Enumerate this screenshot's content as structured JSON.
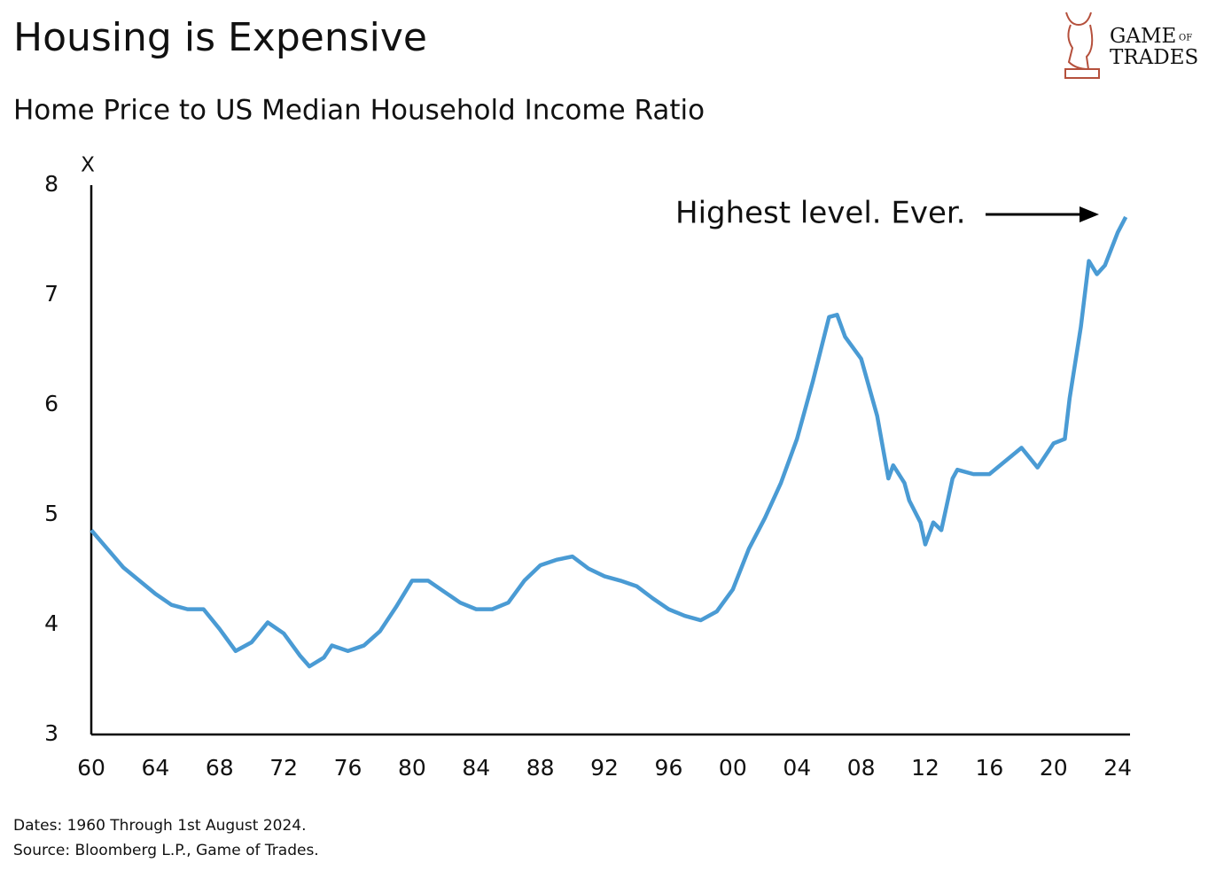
{
  "chart_data": {
    "type": "line",
    "title": "Housing is Expensive",
    "subtitle": "Home Price to US Median Household Income Ratio",
    "y_axis_label": "X",
    "annotation": "Highest level. Ever.",
    "notes": [
      "Dates: 1960 Through 1st August 2024.",
      "Source: Bloomberg L.P., Game of Trades."
    ],
    "logo": {
      "line1": "GAME",
      "small": "OF",
      "line2": "TRADES"
    },
    "x": [
      1960,
      1961,
      1962,
      1963,
      1964,
      1965,
      1966,
      1967,
      1968,
      1969,
      1970,
      1971,
      1972,
      1973,
      1973.6,
      1974.5,
      1975,
      1976,
      1977,
      1978,
      1979,
      1980,
      1981,
      1982,
      1983,
      1984,
      1985,
      1986,
      1987,
      1988,
      1989,
      1990,
      1991,
      1992,
      1993,
      1994,
      1995,
      1996,
      1997,
      1998,
      1999,
      2000,
      2001,
      2002,
      2003,
      2004,
      2005,
      2006,
      2006.5,
      2007,
      2008,
      2009,
      2009.7,
      2010,
      2010.7,
      2011,
      2011.7,
      2012,
      2012.5,
      2013,
      2013.7,
      2014,
      2015,
      2016,
      2017,
      2018,
      2019,
      2020,
      2020.7,
      2021,
      2021.7,
      2022.2,
      2022.7,
      2023.2,
      2024,
      2024.5
    ],
    "series": [
      {
        "name": "Home Price to US Median Household Income Ratio",
        "color": "#4a9bd4",
        "values": [
          4.86,
          4.69,
          4.52,
          4.4,
          4.28,
          4.18,
          4.14,
          4.14,
          3.96,
          3.76,
          3.84,
          4.02,
          3.92,
          3.72,
          3.62,
          3.7,
          3.81,
          3.76,
          3.81,
          3.94,
          4.16,
          4.4,
          4.4,
          4.3,
          4.2,
          4.14,
          4.14,
          4.2,
          4.4,
          4.54,
          4.59,
          4.62,
          4.51,
          4.44,
          4.4,
          4.35,
          4.24,
          4.14,
          4.08,
          4.04,
          4.12,
          4.32,
          4.69,
          4.97,
          5.29,
          5.69,
          6.22,
          6.8,
          6.82,
          6.62,
          6.42,
          5.9,
          5.33,
          5.45,
          5.29,
          5.13,
          4.93,
          4.73,
          4.93,
          4.86,
          5.33,
          5.41,
          5.37,
          5.37,
          5.49,
          5.61,
          5.43,
          5.65,
          5.69,
          6.06,
          6.71,
          7.31,
          7.19,
          7.27,
          7.57,
          7.71
        ]
      }
    ],
    "xlim": [
      1960,
      2024.6
    ],
    "ylim": [
      3,
      8
    ],
    "xticks": [
      {
        "value": 1960,
        "label": "60"
      },
      {
        "value": 1964,
        "label": "64"
      },
      {
        "value": 1968,
        "label": "68"
      },
      {
        "value": 1972,
        "label": "72"
      },
      {
        "value": 1976,
        "label": "76"
      },
      {
        "value": 1980,
        "label": "80"
      },
      {
        "value": 1984,
        "label": "84"
      },
      {
        "value": 1988,
        "label": "88"
      },
      {
        "value": 1992,
        "label": "92"
      },
      {
        "value": 1996,
        "label": "96"
      },
      {
        "value": 2000,
        "label": "00"
      },
      {
        "value": 2004,
        "label": "04"
      },
      {
        "value": 2008,
        "label": "08"
      },
      {
        "value": 2012,
        "label": "12"
      },
      {
        "value": 2016,
        "label": "16"
      },
      {
        "value": 2020,
        "label": "20"
      },
      {
        "value": 2024,
        "label": "24"
      }
    ],
    "yticks": [
      3,
      4,
      5,
      6,
      7,
      8
    ],
    "grid": false
  }
}
